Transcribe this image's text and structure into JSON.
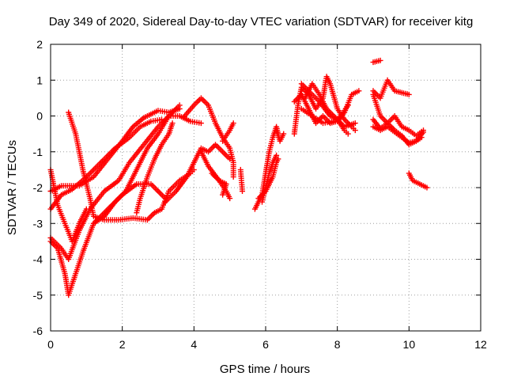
{
  "chart_data": {
    "type": "scatter",
    "title": "Day 349 of 2020, Sidereal Day-to-day VTEC variation (SDTVAR) for receiver kitg",
    "xlabel": "GPS time / hours",
    "ylabel": "SDTVAR / TECUs",
    "xlim": [
      0,
      12
    ],
    "ylim": [
      -6,
      2
    ],
    "xticks": [
      0,
      2,
      4,
      6,
      8,
      10,
      12
    ],
    "yticks": [
      -6,
      -5,
      -4,
      -3,
      -2,
      -1,
      0,
      1,
      2
    ],
    "grid": true,
    "marker": "+",
    "marker_color": "#ff0000",
    "series": [
      {
        "tracks": [
          [
            [
              0.0,
              -2.1
            ],
            [
              0.3,
              -1.95
            ],
            [
              0.8,
              -1.95
            ],
            [
              1.2,
              -1.7
            ],
            [
              1.6,
              -1.2
            ],
            [
              2.0,
              -0.7
            ],
            [
              2.3,
              -0.3
            ],
            [
              2.6,
              -0.05
            ],
            [
              3.0,
              0.15
            ],
            [
              3.3,
              0.1
            ],
            [
              3.6,
              0.2
            ]
          ],
          [
            [
              0.0,
              -2.6
            ],
            [
              0.3,
              -2.2
            ],
            [
              0.6,
              -2.05
            ],
            [
              1.0,
              -1.7
            ],
            [
              1.4,
              -1.3
            ],
            [
              1.8,
              -0.9
            ],
            [
              2.2,
              -0.6
            ],
            [
              2.5,
              -0.3
            ],
            [
              2.8,
              -0.15
            ],
            [
              3.1,
              -0.1
            ]
          ],
          [
            [
              0.0,
              -3.4
            ],
            [
              0.3,
              -3.7
            ],
            [
              0.5,
              -4.0
            ],
            [
              0.8,
              -3.2
            ],
            [
              1.1,
              -2.6
            ],
            [
              1.5,
              -2.1
            ],
            [
              1.9,
              -1.8
            ],
            [
              2.2,
              -1.3
            ],
            [
              2.6,
              -0.8
            ],
            [
              3.0,
              -0.3
            ],
            [
              3.3,
              0.0
            ],
            [
              3.6,
              0.0
            ],
            [
              3.9,
              -0.15
            ],
            [
              4.2,
              -0.2
            ]
          ],
          [
            [
              0.0,
              -3.5
            ],
            [
              0.2,
              -3.7
            ],
            [
              0.4,
              -4.4
            ],
            [
              0.5,
              -5.0
            ],
            [
              0.7,
              -4.4
            ],
            [
              0.9,
              -3.8
            ],
            [
              1.2,
              -3.0
            ],
            [
              1.5,
              -2.8
            ],
            [
              1.8,
              -2.4
            ],
            [
              2.1,
              -2.1
            ],
            [
              2.4,
              -1.5
            ],
            [
              2.7,
              -0.9
            ],
            [
              3.0,
              -0.5
            ],
            [
              3.3,
              0.0
            ],
            [
              3.6,
              0.3
            ]
          ],
          [
            [
              0.5,
              0.1
            ],
            [
              0.7,
              -0.5
            ],
            [
              0.9,
              -1.5
            ],
            [
              1.1,
              -2.3
            ],
            [
              1.2,
              -2.8
            ],
            [
              1.5,
              -2.9
            ],
            [
              1.9,
              -2.9
            ],
            [
              2.3,
              -2.85
            ],
            [
              2.7,
              -2.9
            ],
            [
              2.9,
              -2.7
            ],
            [
              3.1,
              -2.6
            ],
            [
              3.3,
              -2.1
            ],
            [
              3.6,
              -1.8
            ],
            [
              3.9,
              -1.6
            ],
            [
              4.0,
              -1.5
            ]
          ],
          [
            [
              0.0,
              -1.5
            ],
            [
              0.2,
              -2.5
            ],
            [
              0.4,
              -3.0
            ],
            [
              0.6,
              -3.5
            ],
            [
              0.8,
              -3.0
            ],
            [
              1.0,
              -2.6
            ]
          ],
          [
            [
              2.4,
              -2.7
            ],
            [
              2.5,
              -2.3
            ],
            [
              2.7,
              -1.7
            ],
            [
              2.9,
              -1.2
            ],
            [
              3.1,
              -0.8
            ],
            [
              3.3,
              -0.5
            ],
            [
              3.4,
              -0.2
            ]
          ],
          [
            [
              1.2,
              -3.0
            ],
            [
              1.6,
              -2.6
            ],
            [
              2.0,
              -2.2
            ],
            [
              2.4,
              -1.9
            ],
            [
              2.8,
              -1.9
            ],
            [
              3.0,
              -2.1
            ],
            [
              3.2,
              -2.3
            ]
          ],
          [
            [
              3.2,
              -2.4
            ],
            [
              3.5,
              -2.1
            ],
            [
              3.8,
              -1.7
            ],
            [
              4.0,
              -1.3
            ],
            [
              4.2,
              -0.9
            ],
            [
              4.4,
              -1.0
            ],
            [
              4.6,
              -0.8
            ],
            [
              4.8,
              -1.0
            ],
            [
              5.0,
              -1.2
            ]
          ],
          [
            [
              3.7,
              -0.05
            ],
            [
              4.0,
              0.3
            ],
            [
              4.2,
              0.5
            ],
            [
              4.4,
              0.3
            ],
            [
              4.6,
              -0.2
            ],
            [
              4.8,
              -0.6
            ],
            [
              5.0,
              -0.9
            ],
            [
              5.1,
              -1.3
            ],
            [
              5.1,
              -1.7
            ]
          ],
          [
            [
              4.2,
              -1.0
            ],
            [
              4.4,
              -1.4
            ],
            [
              4.7,
              -1.8
            ],
            [
              4.9,
              -2.1
            ],
            [
              5.0,
              -2.3
            ]
          ],
          [
            [
              4.5,
              -1.6
            ],
            [
              4.7,
              -1.8
            ],
            [
              4.9,
              -1.9
            ],
            [
              4.8,
              -2.2
            ]
          ],
          [
            [
              4.8,
              -0.7
            ],
            [
              5.0,
              -0.4
            ],
            [
              5.1,
              -0.2
            ]
          ],
          [
            [
              5.3,
              -1.5
            ],
            [
              5.35,
              -2.1
            ]
          ],
          [
            [
              5.7,
              -2.6
            ],
            [
              5.9,
              -2.2
            ],
            [
              6.0,
              -1.6
            ],
            [
              6.1,
              -1.0
            ],
            [
              6.2,
              -0.6
            ],
            [
              6.3,
              -0.3
            ],
            [
              6.35,
              -0.5
            ]
          ],
          [
            [
              5.9,
              -2.4
            ],
            [
              6.0,
              -2.0
            ],
            [
              6.1,
              -1.6
            ],
            [
              6.2,
              -1.3
            ],
            [
              6.3,
              -1.1
            ]
          ],
          [
            [
              5.8,
              -2.3
            ],
            [
              6.0,
              -2.1
            ],
            [
              6.2,
              -1.7
            ],
            [
              6.3,
              -1.3
            ],
            [
              6.35,
              -1.2
            ]
          ],
          [
            [
              6.3,
              -0.4
            ],
            [
              6.4,
              -0.7
            ],
            [
              6.5,
              -0.5
            ]
          ],
          [
            [
              6.8,
              -0.5
            ],
            [
              6.9,
              0.3
            ],
            [
              7.0,
              0.8
            ],
            [
              7.2,
              0.6
            ],
            [
              7.4,
              0.2
            ],
            [
              7.6,
              0.5
            ],
            [
              7.7,
              1.1
            ],
            [
              7.8,
              0.9
            ],
            [
              8.0,
              0.2
            ],
            [
              8.2,
              -0.1
            ],
            [
              8.4,
              -0.3
            ],
            [
              8.5,
              -0.4
            ]
          ],
          [
            [
              6.8,
              0.4
            ],
            [
              7.0,
              0.6
            ],
            [
              7.2,
              0.2
            ],
            [
              7.4,
              -0.2
            ],
            [
              7.6,
              0.0
            ],
            [
              7.8,
              -0.2
            ],
            [
              8.0,
              -0.15
            ],
            [
              8.2,
              0.1
            ],
            [
              8.4,
              0.6
            ],
            [
              8.6,
              0.7
            ]
          ],
          [
            [
              7.0,
              0.9
            ],
            [
              7.2,
              0.7
            ],
            [
              7.5,
              0.4
            ],
            [
              7.8,
              0.0
            ],
            [
              8.0,
              -0.1
            ],
            [
              8.2,
              -0.4
            ],
            [
              8.3,
              -0.5
            ]
          ],
          [
            [
              7.0,
              0.2
            ],
            [
              7.3,
              0.0
            ],
            [
              7.6,
              -0.2
            ],
            [
              7.9,
              -0.15
            ],
            [
              8.1,
              0.0
            ],
            [
              8.3,
              0.3
            ]
          ],
          [
            [
              7.1,
              0.5
            ],
            [
              7.3,
              0.9
            ],
            [
              7.5,
              0.6
            ],
            [
              7.7,
              0.2
            ],
            [
              7.9,
              0.0
            ],
            [
              8.2,
              -0.3
            ],
            [
              8.5,
              -0.2
            ]
          ],
          [
            [
              9.0,
              1.5
            ],
            [
              9.2,
              1.55
            ]
          ],
          [
            [
              9.0,
              0.7
            ],
            [
              9.2,
              0.5
            ],
            [
              9.4,
              1.0
            ],
            [
              9.6,
              0.7
            ],
            [
              9.8,
              0.65
            ],
            [
              10.0,
              0.6
            ]
          ],
          [
            [
              9.0,
              0.6
            ],
            [
              9.2,
              0.0
            ],
            [
              9.4,
              -0.2
            ],
            [
              9.6,
              0.0
            ],
            [
              9.8,
              -0.3
            ],
            [
              10.0,
              -0.4
            ],
            [
              10.2,
              -0.55
            ],
            [
              10.4,
              -0.4
            ]
          ],
          [
            [
              9.0,
              -0.3
            ],
            [
              9.2,
              -0.4
            ],
            [
              9.4,
              -0.3
            ],
            [
              9.6,
              -0.45
            ],
            [
              9.8,
              -0.6
            ],
            [
              10.0,
              -0.75
            ],
            [
              10.2,
              -0.7
            ],
            [
              10.35,
              -0.6
            ]
          ],
          [
            [
              9.0,
              -0.1
            ],
            [
              9.2,
              -0.35
            ],
            [
              9.4,
              -0.2
            ],
            [
              9.6,
              -0.4
            ],
            [
              9.8,
              -0.55
            ],
            [
              10.0,
              -0.8
            ],
            [
              10.2,
              -0.7
            ],
            [
              10.4,
              -0.45
            ]
          ],
          [
            [
              10.0,
              -1.6
            ],
            [
              10.1,
              -1.8
            ],
            [
              10.3,
              -1.9
            ],
            [
              10.5,
              -2.0
            ]
          ]
        ]
      }
    ]
  }
}
